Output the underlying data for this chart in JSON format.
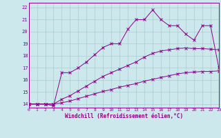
{
  "xlabel": "Windchill (Refroidissement éolien,°C)",
  "bg_color": "#cce8ec",
  "grid_color": "#aacccc",
  "line_color": "#880088",
  "xlim": [
    0,
    23
  ],
  "ylim": [
    13.7,
    22.4
  ],
  "xticks": [
    0,
    1,
    2,
    3,
    4,
    5,
    6,
    7,
    8,
    9,
    10,
    11,
    12,
    13,
    14,
    15,
    16,
    17,
    18,
    19,
    20,
    21,
    22,
    23
  ],
  "yticks": [
    14,
    15,
    16,
    17,
    18,
    19,
    20,
    21,
    22
  ],
  "curve1_x": [
    0,
    1,
    2,
    3,
    4,
    5,
    6,
    7,
    8,
    9,
    10,
    11,
    12,
    13,
    14,
    15,
    16,
    17,
    18,
    19,
    20,
    21,
    22,
    23
  ],
  "curve1_y": [
    14.0,
    14.0,
    14.0,
    13.85,
    16.6,
    16.6,
    17.0,
    17.5,
    18.1,
    18.7,
    19.0,
    19.0,
    20.2,
    21.0,
    21.0,
    21.8,
    21.0,
    20.5,
    20.5,
    19.8,
    19.3,
    20.5,
    20.5,
    17.0
  ],
  "curve2_x": [
    0,
    1,
    2,
    3,
    4,
    5,
    6,
    7,
    8,
    9,
    10,
    11,
    12,
    13,
    14,
    15,
    16,
    17,
    18,
    19,
    20,
    21,
    22,
    23
  ],
  "curve2_y": [
    14.0,
    14.0,
    14.0,
    14.0,
    14.4,
    14.7,
    15.1,
    15.5,
    15.9,
    16.3,
    16.6,
    16.9,
    17.2,
    17.5,
    17.9,
    18.2,
    18.4,
    18.5,
    18.6,
    18.65,
    18.6,
    18.6,
    18.55,
    18.5
  ],
  "curve3_x": [
    0,
    1,
    2,
    3,
    4,
    5,
    6,
    7,
    8,
    9,
    10,
    11,
    12,
    13,
    14,
    15,
    16,
    17,
    18,
    19,
    20,
    21,
    22,
    23
  ],
  "curve3_y": [
    14.0,
    14.0,
    14.0,
    14.0,
    14.1,
    14.25,
    14.45,
    14.65,
    14.85,
    15.05,
    15.2,
    15.4,
    15.55,
    15.7,
    15.9,
    16.05,
    16.2,
    16.35,
    16.5,
    16.6,
    16.65,
    16.7,
    16.7,
    16.75
  ]
}
